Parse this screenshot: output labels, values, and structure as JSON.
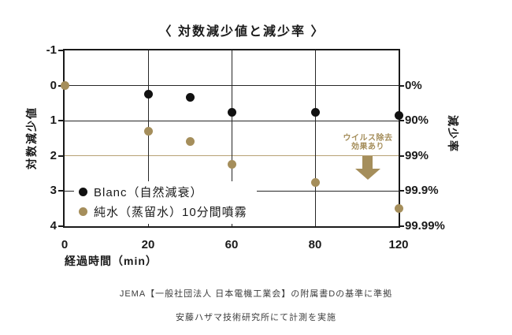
{
  "title": "〈 対数減少値と減少率 〉",
  "colors": {
    "accent_tan": "#a58e5b",
    "tan_line": "#b7a175",
    "grid": "#262626",
    "black_series": "#111111"
  },
  "chart_data": {
    "type": "scatter",
    "title": "〈 対数減少値と減少率 〉",
    "xlabel": "経過時間（min）",
    "ylabel_left": "対数減少値",
    "ylabel_right": "減少率",
    "ylim": [
      -1,
      4
    ],
    "y_ticks_left": [
      {
        "value": -1,
        "label": "-1"
      },
      {
        "value": 0,
        "label": "0"
      },
      {
        "value": 1,
        "label": "1"
      },
      {
        "value": 2,
        "label": "2"
      },
      {
        "value": 3,
        "label": "3"
      },
      {
        "value": 4,
        "label": "4"
      }
    ],
    "y_ticks_right": [
      {
        "value": 0,
        "label": "0%"
      },
      {
        "value": 1,
        "label": "90%"
      },
      {
        "value": 2,
        "label": "99%"
      },
      {
        "value": 3,
        "label": "99.9%"
      },
      {
        "value": 4,
        "label": "99.99%"
      }
    ],
    "x_ticks": [
      {
        "x": 0,
        "label": "0"
      },
      {
        "x": 20,
        "label": "20"
      },
      {
        "x": 60,
        "label": "60"
      },
      {
        "x": 80,
        "label": "80"
      },
      {
        "x": 120,
        "label": "120"
      }
    ],
    "x_frac": {
      "0": 0,
      "20": 0.25,
      "40": 0.375,
      "60": 0.5,
      "80": 0.75,
      "120": 1
    },
    "grid_x_at": [
      20,
      60,
      80
    ],
    "grid_y_at": [
      0,
      1,
      3
    ],
    "highlight_line_y": 2,
    "series": [
      {
        "name": "Blanc（自然減衰）",
        "color": "#111111",
        "points": [
          [
            20,
            0.25
          ],
          [
            40,
            0.33
          ],
          [
            60,
            0.75
          ],
          [
            80,
            0.75
          ],
          [
            120,
            0.85
          ]
        ]
      },
      {
        "name": "純水（蒸留水）10分間噴霧",
        "color": "#a58e5b",
        "points": [
          [
            0,
            0
          ],
          [
            20,
            1.3
          ],
          [
            40,
            1.6
          ],
          [
            60,
            2.25
          ],
          [
            80,
            2.75
          ],
          [
            120,
            3.5
          ]
        ]
      }
    ],
    "annotation": {
      "line1": "ウイルス除去",
      "line2": "効果あり"
    }
  },
  "footer": {
    "line1": "JEMA【一般社団法人 日本電機工業会】の附属書Dの基準に準拠",
    "line2": "安藤ハザマ技術研究所にて計測を実施"
  }
}
